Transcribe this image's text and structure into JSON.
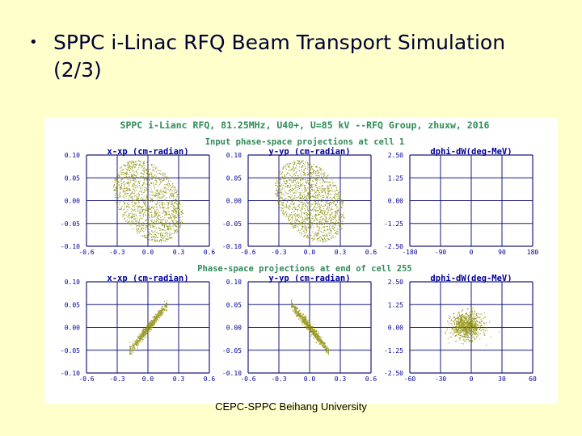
{
  "slide": {
    "bullet": "•",
    "title_line1": "SPPC i-Linac RFQ Beam Transport Simulation",
    "title_line2": "(2/3)",
    "footer": "CEPC-SPPC Beihang University"
  },
  "colors": {
    "background": "#ffffcc",
    "title_text": "#000033",
    "header_text": "#2e8b57",
    "plot_label": "#000099",
    "grid": "#1a1a80",
    "points": "#8b8b00"
  },
  "chart_data": {
    "type": "scatter",
    "title": "SPPC i-Lianc RFQ, 81.25MHz, U40+, U=85 kV   --RFQ Group, zhuxw, 2016",
    "rows": [
      {
        "header": "Input phase-space projections at cell 1",
        "panels": [
          {
            "label": "x-xp (cm-radian)",
            "xlim": [
              -0.6,
              0.6
            ],
            "ylim": [
              -0.1,
              0.1
            ],
            "xticks": [
              "-0.6",
              "-0.3",
              "0.0",
              "0.3",
              "0.6"
            ],
            "yticks": [
              "0.10",
              "0.05",
              "0.00",
              "-0.05",
              "-0.10"
            ],
            "distribution": {
              "shape": "ellipse",
              "center": [
                0.0,
                0.0
              ],
              "semi_axes": [
                0.34,
                0.085
              ],
              "correlation": -0.35,
              "points": 1500
            }
          },
          {
            "label": "y-yp (cm-radian)",
            "xlim": [
              -0.6,
              0.6
            ],
            "ylim": [
              -0.1,
              0.1
            ],
            "xticks": [
              "-0.6",
              "-0.3",
              "0.0",
              "0.3",
              "0.6"
            ],
            "yticks": [
              "0.10",
              "0.05",
              "0.00",
              "-0.05",
              "-0.10"
            ],
            "distribution": {
              "shape": "ellipse",
              "center": [
                0.0,
                0.0
              ],
              "semi_axes": [
                0.34,
                0.085
              ],
              "correlation": -0.35,
              "points": 1500
            }
          },
          {
            "label": "dphi-dW(deg-MeV)",
            "xlim": [
              -180,
              180
            ],
            "ylim": [
              -2.5,
              2.5
            ],
            "xticks": [
              "-180",
              "-90",
              "0",
              "90",
              "180"
            ],
            "yticks": [
              "2.50",
              "1.25",
              "0.00",
              "-1.25",
              "-2.50"
            ],
            "distribution": null
          }
        ]
      },
      {
        "header": "Phase-space projections at end of cell 255",
        "panels": [
          {
            "label": "x-xp (cm-radian)",
            "xlim": [
              -0.6,
              0.6
            ],
            "ylim": [
              -0.1,
              0.1
            ],
            "xticks": [
              "-0.6",
              "-0.3",
              "0.0",
              "0.3",
              "0.6"
            ],
            "yticks": [
              "0.10",
              "0.05",
              "0.00",
              "-0.05",
              "-0.10"
            ],
            "distribution": {
              "shape": "tilted-line",
              "center": [
                0.0,
                0.0
              ],
              "half_length": 0.18,
              "slope": 0.05,
              "spread": 0.005,
              "points": 700
            }
          },
          {
            "label": "y-yp (cm-radian)",
            "xlim": [
              -0.6,
              0.6
            ],
            "ylim": [
              -0.1,
              0.1
            ],
            "xticks": [
              "-0.6",
              "-0.3",
              "0.0",
              "0.3",
              "0.6"
            ],
            "yticks": [
              "0.10",
              "0.05",
              "0.00",
              "-0.05",
              "-0.10"
            ],
            "distribution": {
              "shape": "tilted-line",
              "center": [
                0.0,
                0.0
              ],
              "half_length": 0.18,
              "slope": -0.05,
              "spread": 0.005,
              "points": 700
            }
          },
          {
            "label": "dphi-dW(deg-MeV)",
            "xlim": [
              -60,
              60
            ],
            "ylim": [
              -2.5,
              2.5
            ],
            "xticks": [
              "-60",
              "-30",
              "0",
              "30",
              "60"
            ],
            "yticks": [
              "2.50",
              "1.25",
              "0.00",
              "-1.25",
              "-2.50"
            ],
            "distribution": {
              "shape": "core",
              "center": [
                -5,
                0.1
              ],
              "sigma": [
                7.5,
                0.35
              ],
              "points": 900
            }
          }
        ]
      }
    ],
    "grid": true,
    "grid_divisions": [
      4,
      4
    ]
  }
}
